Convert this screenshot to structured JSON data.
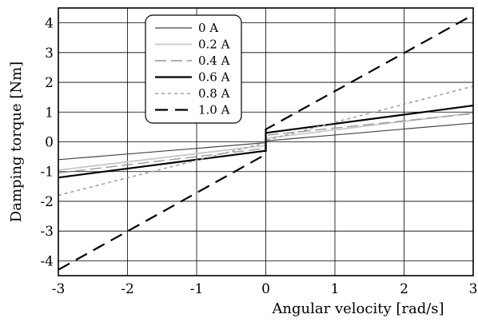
{
  "chart_data": {
    "type": "line",
    "xlabel": "Angular velocity [rad/s]",
    "ylabel": "Damping torque [Nm]",
    "xlim": [
      -3,
      3
    ],
    "ylim": [
      -4.5,
      4.5
    ],
    "x_ticks": [
      "-3",
      "-2",
      "-1",
      "0",
      "1",
      "2",
      "3"
    ],
    "y_ticks": [
      "-4",
      "-3",
      "-2",
      "-1",
      "0",
      "1",
      "2",
      "3",
      "4"
    ],
    "grid": true,
    "legend_position": "top-left",
    "series": [
      {
        "name": "0 A",
        "color": "#444444",
        "dash": "solid",
        "width": 1.2,
        "points": [
          [
            -3,
            -0.6
          ],
          [
            0,
            -0.03
          ],
          [
            0,
            0.03
          ],
          [
            3,
            0.63
          ]
        ]
      },
      {
        "name": "0.2 A",
        "color": "#c8c8c8",
        "dash": "solid",
        "width": 1.8,
        "points": [
          [
            -3,
            -0.95
          ],
          [
            0,
            -0.12
          ],
          [
            0,
            0.12
          ],
          [
            3,
            0.97
          ]
        ]
      },
      {
        "name": "0.4 A",
        "color": "#999999",
        "dash": "longdash",
        "width": 1.4,
        "points": [
          [
            -3,
            -1.05
          ],
          [
            0,
            -0.22
          ],
          [
            0,
            0.22
          ],
          [
            3,
            0.95
          ]
        ]
      },
      {
        "name": "0.6 A",
        "color": "#000000",
        "dash": "solid",
        "width": 2.2,
        "points": [
          [
            -3,
            -1.2
          ],
          [
            0,
            -0.3
          ],
          [
            0,
            0.3
          ],
          [
            3,
            1.22
          ]
        ]
      },
      {
        "name": "0.8 A",
        "color": "#a0a0a0",
        "dash": "dot",
        "width": 1.6,
        "points": [
          [
            -3,
            -1.8
          ],
          [
            0,
            -0.03
          ],
          [
            0,
            0.05
          ],
          [
            3,
            1.87
          ]
        ]
      },
      {
        "name": "1.0 A",
        "color": "#000000",
        "dash": "dash",
        "width": 2.2,
        "points": [
          [
            -3,
            -4.3
          ],
          [
            0,
            -0.42
          ],
          [
            0,
            0.42
          ],
          [
            3,
            4.27
          ]
        ]
      }
    ]
  }
}
